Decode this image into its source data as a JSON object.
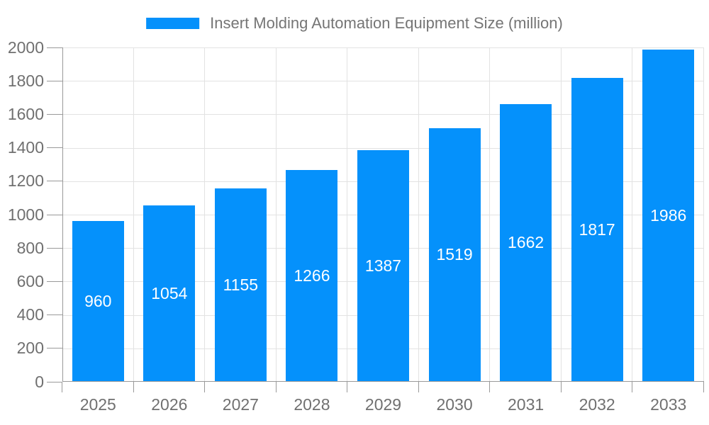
{
  "chart_data": {
    "type": "bar",
    "legend": "Insert Molding Automation Equipment Size (million)",
    "legend_position": "top-center",
    "categories": [
      "2025",
      "2026",
      "2027",
      "2028",
      "2029",
      "2030",
      "2031",
      "2032",
      "2033"
    ],
    "values": [
      960,
      1054,
      1155,
      1266,
      1387,
      1519,
      1662,
      1817,
      1986
    ],
    "value_labels": [
      "960",
      "1054",
      "1155",
      "1266",
      "1387",
      "1519",
      "1662",
      "1817",
      "1986"
    ],
    "xlabel": "",
    "ylabel": "",
    "ylim": [
      0,
      2000
    ],
    "ytick_step": 200,
    "y_tick_labels": [
      "0",
      "200",
      "400",
      "600",
      "800",
      "1000",
      "1200",
      "1400",
      "1600",
      "1800",
      "2000"
    ],
    "grid": true,
    "colors": {
      "bar": "#0591FB",
      "gridline": "#E2E2E2",
      "axis_line": "#999999",
      "axis_text": "#707070",
      "legend_text": "#757575",
      "value_label": "#FFFFFF",
      "background": "#FFFFFF"
    }
  }
}
